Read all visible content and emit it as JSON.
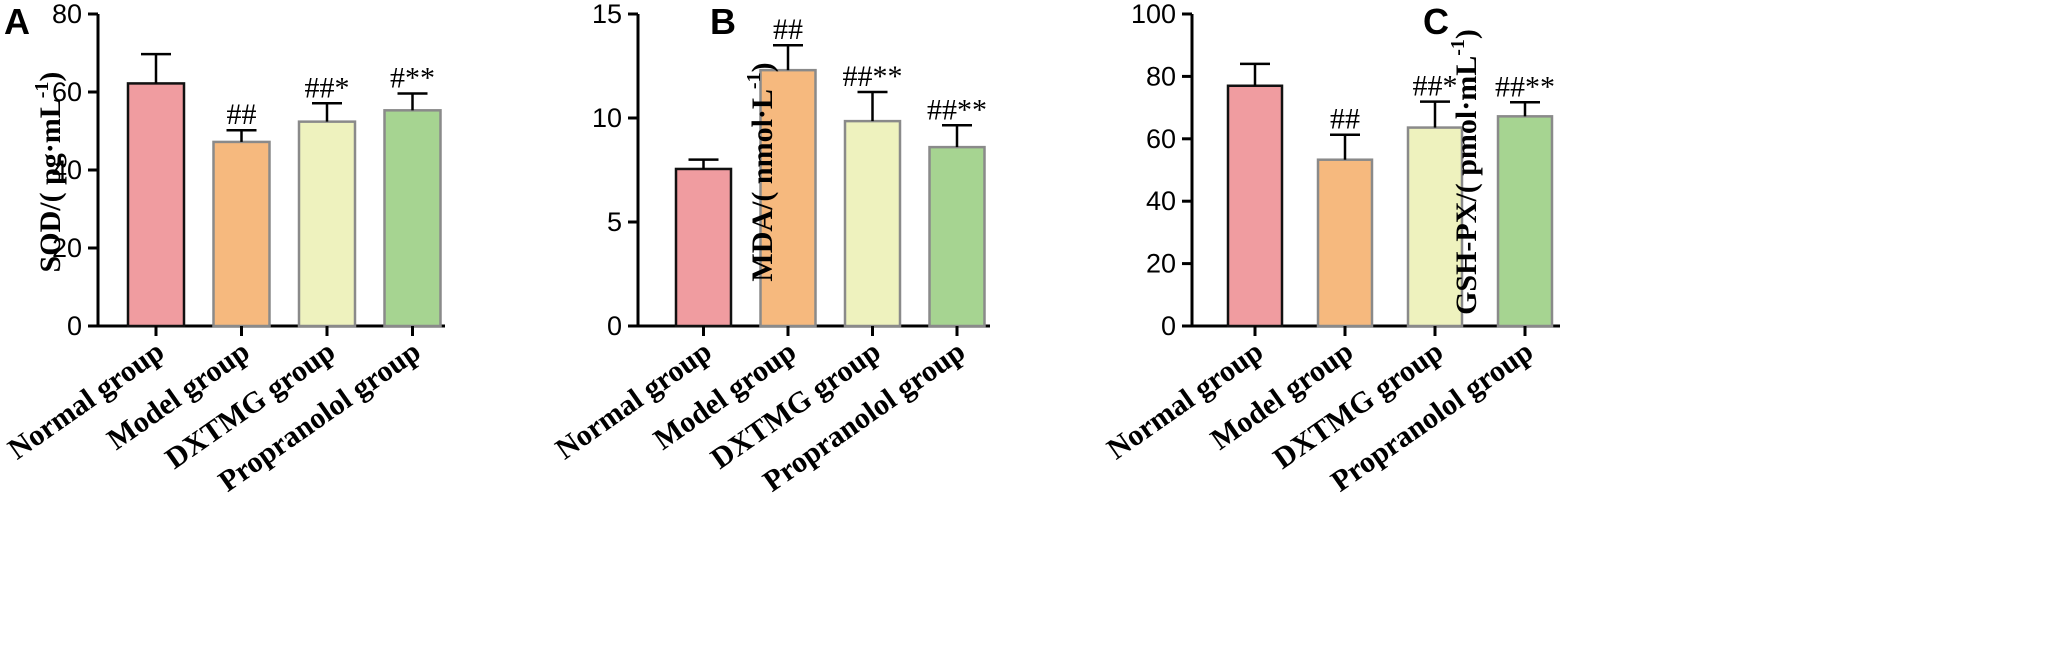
{
  "chart_data": [
    {
      "type": "bar",
      "panel": "A",
      "ylabel_main": "SOD/( pg·mL",
      "ylabel_sup": "-1",
      "ylabel_end": ")",
      "ylim": [
        0,
        80
      ],
      "yticks": [
        "0",
        "20",
        "40",
        "60",
        "80"
      ],
      "categories": [
        "Normal group",
        "Model group",
        "DXTMG group",
        "Propranolol group"
      ],
      "values": [
        62.2,
        47.2,
        52.4,
        55.3
      ],
      "errors": [
        7.5,
        3.0,
        4.7,
        4.3
      ],
      "annotations": [
        "",
        "##",
        "##*",
        "#**"
      ]
    },
    {
      "type": "bar",
      "panel": "B",
      "ylabel_main": "MDA/( nmol·L",
      "ylabel_sup": "-1",
      "ylabel_end": ")",
      "ylim": [
        0,
        15
      ],
      "yticks": [
        "0",
        "5",
        "10",
        "15"
      ],
      "categories": [
        "Normal  group",
        "Model group",
        "DXTMG group",
        "Propranolol group"
      ],
      "values": [
        7.55,
        12.3,
        9.85,
        8.6
      ],
      "errors": [
        0.45,
        1.2,
        1.4,
        1.05
      ],
      "annotations": [
        "",
        "##",
        "##**",
        "##**"
      ]
    },
    {
      "type": "bar",
      "panel": "C",
      "ylabel_main": "GSH-PX/( pmol·mL",
      "ylabel_sup": "-1",
      "ylabel_end": ")",
      "ylim": [
        0,
        100
      ],
      "yticks": [
        "0",
        "20",
        "40",
        "60",
        "80",
        "100"
      ],
      "categories": [
        "Normal group",
        "Model group",
        "DXTMG group",
        "Propranolol group"
      ],
      "values": [
        77,
        53.3,
        63.6,
        67.2
      ],
      "errors": [
        7.0,
        8.0,
        8.3,
        4.5
      ],
      "annotations": [
        "",
        "##",
        "##*",
        "##**"
      ]
    }
  ],
  "bar_colors": {
    "fill": [
      "#f09ca0",
      "#f6b97e",
      "#eef2be",
      "#a6d491"
    ],
    "stroke": [
      "#111111",
      "#8a8a8a",
      "#8a8a8a",
      "#8a8a8a"
    ]
  }
}
